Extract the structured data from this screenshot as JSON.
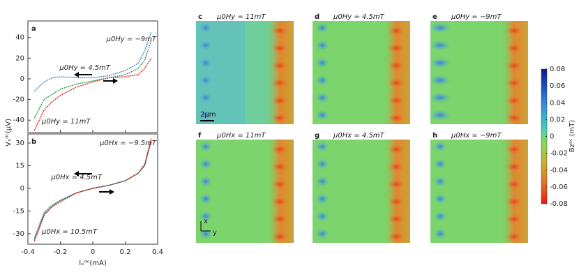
{
  "chart_data": [
    {
      "type": "line",
      "panel": "a",
      "ylabel": "Vₓᵈᶜ(μV)",
      "xlim": [
        -0.4,
        0.4
      ],
      "xticks": [
        -0.4,
        -0.2,
        0,
        0.2,
        0.4
      ],
      "ylim": [
        -52,
        56
      ],
      "yticks": [
        -40,
        -20,
        0,
        20,
        40
      ],
      "x": [
        -0.36,
        -0.3,
        -0.25,
        -0.2,
        -0.1,
        0,
        0.1,
        0.2,
        0.28,
        0.32,
        0.36
      ],
      "series": [
        {
          "name": "μ0Hy = −9mT",
          "color": "#3a8cc8",
          "values": [
            -12,
            -3,
            1,
            2,
            1,
            1,
            3,
            8,
            15,
            27,
            45
          ]
        },
        {
          "name": "μ0Hy = 4.5mT",
          "color": "#2e9a48",
          "values": [
            -38,
            -20,
            -15,
            -10,
            -5,
            -2,
            1,
            4,
            10,
            18,
            37
          ]
        },
        {
          "name": "μ0Hy = 11mT",
          "color": "#d8262a",
          "values": [
            -50,
            -30,
            -22,
            -16,
            -8,
            -3,
            1,
            2,
            4,
            10,
            20
          ]
        }
      ]
    },
    {
      "type": "line",
      "panel": "b",
      "xlabel": "Iₓᵈᶜ(mA)",
      "xlim": [
        -0.4,
        0.4
      ],
      "xticks": [
        -0.4,
        -0.2,
        0,
        0.2,
        0.4
      ],
      "ylim": [
        -37,
        36
      ],
      "yticks": [
        -30,
        -15,
        0,
        15,
        30
      ],
      "x": [
        -0.36,
        -0.3,
        -0.25,
        -0.2,
        -0.1,
        0,
        0.1,
        0.2,
        0.28,
        0.32,
        0.36
      ],
      "series": [
        {
          "name": "μ0Hx = −9.5mT",
          "color": "#3a8cc8",
          "values": [
            -34,
            -17,
            -12,
            -8,
            -3,
            0,
            2,
            5,
            10,
            15,
            32
          ]
        },
        {
          "name": "μ0Hx = 4.5mT",
          "color": "#2e9a48",
          "values": [
            -33,
            -16,
            -11,
            -8,
            -3,
            0,
            2,
            5,
            10,
            15,
            31
          ]
        },
        {
          "name": "μ0Hx = 10.5mT",
          "color": "#d8262a",
          "values": [
            -35,
            -18,
            -12,
            -9,
            -3,
            0,
            2,
            5,
            10,
            16,
            33
          ]
        }
      ]
    }
  ],
  "maps": [
    {
      "panel": "c",
      "title": "μ0Hy = 11mT"
    },
    {
      "panel": "d",
      "title": "μ0Hy = 4.5mT"
    },
    {
      "panel": "e",
      "title": "μ0Hy = −9mT"
    },
    {
      "panel": "f",
      "title": "μ0Hx = 11mT"
    },
    {
      "panel": "g",
      "title": "μ0Hx = 4.5mT"
    },
    {
      "panel": "h",
      "title": "μ0Hx = −9mT"
    }
  ],
  "scale_bar": "2μm",
  "axis_x": "x",
  "axis_y": "y",
  "colorbar": {
    "label": "Bzᵃᶜ (mT)",
    "ylim": [
      -0.08,
      0.08
    ],
    "yticks": [
      -0.08,
      -0.06,
      -0.04,
      -0.02,
      0,
      0.02,
      0.04,
      0.06,
      0.08
    ]
  }
}
